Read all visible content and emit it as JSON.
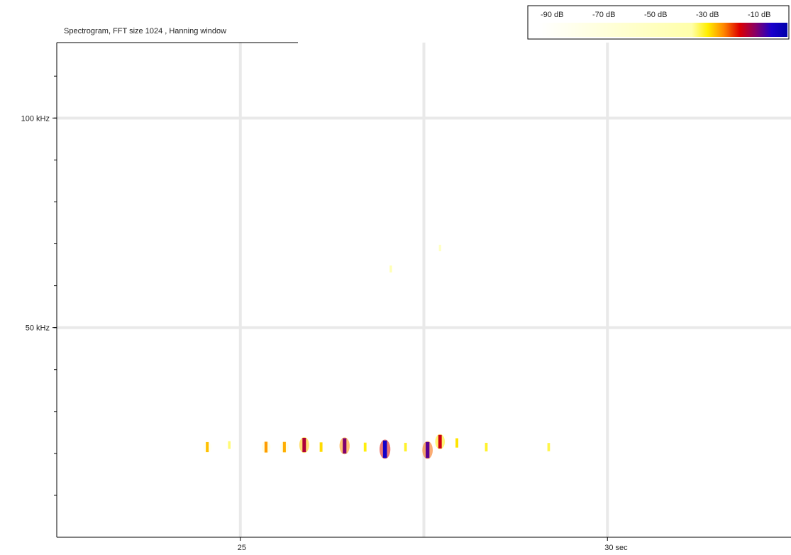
{
  "chart_data": {
    "type": "heatmap",
    "title": "Spectrogram, FFT size 1024 , Hanning window",
    "y_ticks": [
      {
        "value": 100,
        "label": "100 kHz"
      },
      {
        "value": 50,
        "label": "50 kHz"
      }
    ],
    "x_ticks": [
      {
        "value": 25,
        "label": "25"
      },
      {
        "value": 30,
        "label": "30 sec"
      }
    ],
    "xlim": [
      22.5,
      32.5
    ],
    "ylim": [
      0,
      118
    ],
    "y_minor_step": 10,
    "x_grid": [
      25,
      27.5,
      30
    ],
    "y_grid": [
      100,
      50
    ],
    "grid": true,
    "colorbar": {
      "labels": [
        "-90 dB",
        "-70 dB",
        "-50 dB",
        "-30 dB",
        "-10 dB"
      ],
      "colors": [
        "#ffffff",
        "#ffffaa",
        "#ffee00",
        "#ff8800",
        "#dd0000",
        "#880066",
        "#1a00cc",
        "#0000aa"
      ],
      "placement": "top-right"
    },
    "events": [
      {
        "t": 24.55,
        "f": 21.5,
        "db": -62
      },
      {
        "t": 24.85,
        "f": 22.0,
        "db": -75
      },
      {
        "t": 25.35,
        "f": 21.5,
        "db": -58
      },
      {
        "t": 25.6,
        "f": 21.5,
        "db": -60
      },
      {
        "t": 25.87,
        "f": 22.0,
        "db": -38
      },
      {
        "t": 26.1,
        "f": 21.5,
        "db": -65
      },
      {
        "t": 26.42,
        "f": 21.8,
        "db": -32
      },
      {
        "t": 26.7,
        "f": 21.5,
        "db": -68
      },
      {
        "t": 26.97,
        "f": 21.0,
        "db": -20
      },
      {
        "t": 27.25,
        "f": 21.5,
        "db": -70
      },
      {
        "t": 27.55,
        "f": 20.8,
        "db": -28
      },
      {
        "t": 27.72,
        "f": 22.8,
        "db": -42
      },
      {
        "t": 27.95,
        "f": 22.5,
        "db": -66
      },
      {
        "t": 28.35,
        "f": 21.5,
        "db": -70
      },
      {
        "t": 29.2,
        "f": 21.5,
        "db": -72
      },
      {
        "t": 27.05,
        "f": 64.0,
        "db": -80
      },
      {
        "t": 27.72,
        "f": 69.0,
        "db": -82
      }
    ]
  }
}
